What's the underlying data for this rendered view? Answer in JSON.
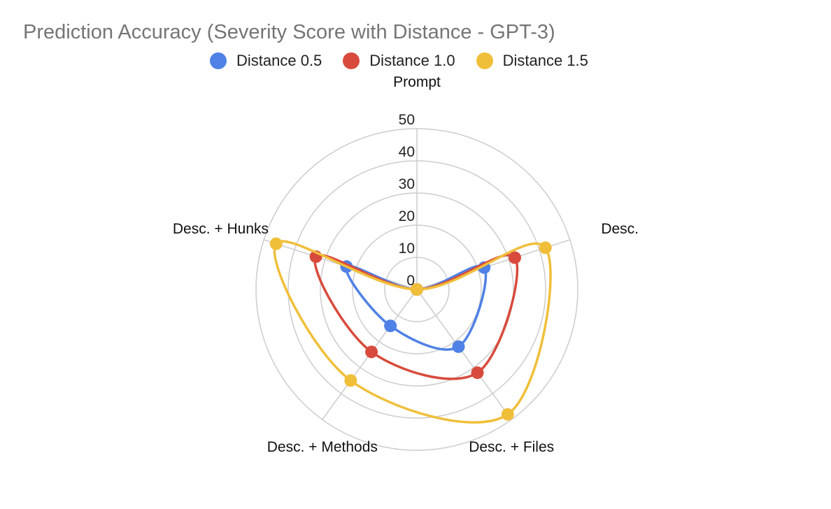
{
  "chart_data": {
    "type": "radar",
    "title": "Prediction Accuracy (Severity Score with Distance - GPT-3)",
    "categories": [
      "Prompt",
      "Desc.",
      "Desc. + Files",
      "Desc. + Methods",
      "Desc. + Hunks"
    ],
    "rlim": [
      0,
      50
    ],
    "r_ticks": [
      0,
      10,
      20,
      30,
      40,
      50
    ],
    "grid": true,
    "legend": "top",
    "series": [
      {
        "name": "Distance 0.5",
        "color": "#4f81e6",
        "values": [
          0,
          22,
          22,
          14,
          23
        ]
      },
      {
        "name": "Distance 1.0",
        "color": "#d84b3c",
        "values": [
          0,
          32,
          32,
          24,
          33
        ]
      },
      {
        "name": "Distance 1.5",
        "color": "#f0bf3a",
        "values": [
          0,
          42,
          48,
          35,
          46
        ]
      }
    ]
  }
}
